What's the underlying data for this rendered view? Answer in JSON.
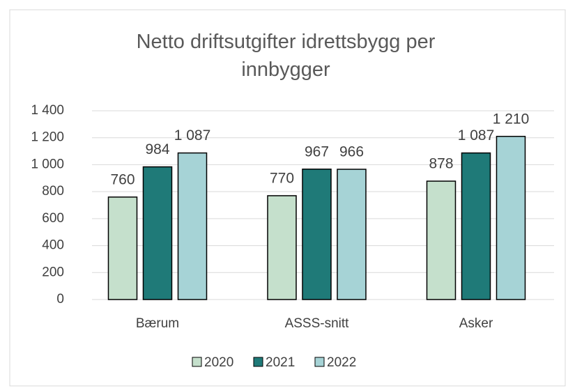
{
  "chart_data": {
    "type": "bar",
    "title": "Netto driftsutgifter idrettsbygg per innbygger",
    "categories": [
      "Bærum",
      "ASSS-snitt",
      "Asker"
    ],
    "series": [
      {
        "name": "2020",
        "color": "#c5e0cc",
        "values": [
          760,
          770,
          878
        ],
        "value_labels": [
          "760",
          "770",
          "878"
        ]
      },
      {
        "name": "2021",
        "color": "#1f7a78",
        "values": [
          984,
          967,
          1087
        ],
        "value_labels": [
          "984",
          "967",
          "1 087"
        ]
      },
      {
        "name": "2022",
        "color": "#a6d3d6",
        "values": [
          1087,
          966,
          1210
        ],
        "value_labels": [
          "1 087",
          "966",
          "1 210"
        ]
      }
    ],
    "ylim": [
      0,
      1400
    ],
    "yticks": [
      0,
      200,
      400,
      600,
      800,
      {
        "value": 1000,
        "label": "1 000"
      },
      {
        "value": 1200,
        "label": "1 200"
      },
      {
        "value": 1400,
        "label": "1 400"
      }
    ],
    "grid": true,
    "legend": "bottom"
  }
}
